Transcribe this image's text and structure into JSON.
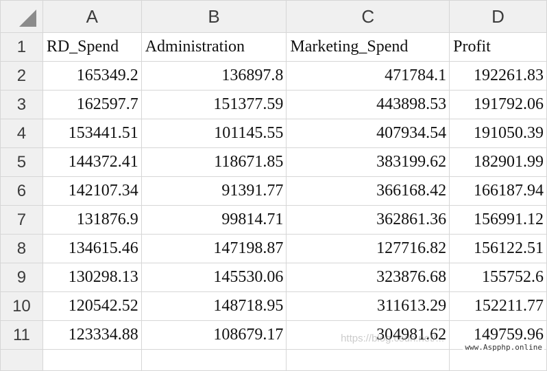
{
  "sheet": {
    "column_headers": [
      "A",
      "B",
      "C",
      "D"
    ],
    "row_numbers": [
      "1",
      "2",
      "3",
      "4",
      "5",
      "6",
      "7",
      "8",
      "9",
      "10",
      "11"
    ],
    "header_row": [
      "RD_Spend",
      "Administration",
      "Marketing_Spend",
      "Profit"
    ],
    "rows": [
      [
        "165349.2",
        "136897.8",
        "471784.1",
        "192261.83"
      ],
      [
        "162597.7",
        "151377.59",
        "443898.53",
        "191792.06"
      ],
      [
        "153441.51",
        "101145.55",
        "407934.54",
        "191050.39"
      ],
      [
        "144372.41",
        "118671.85",
        "383199.62",
        "182901.99"
      ],
      [
        "142107.34",
        "91391.77",
        "366168.42",
        "166187.94"
      ],
      [
        "131876.9",
        "99814.71",
        "362861.36",
        "156991.12"
      ],
      [
        "134615.46",
        "147198.87",
        "127716.82",
        "156122.51"
      ],
      [
        "130298.13",
        "145530.06",
        "323876.68",
        "155752.6"
      ],
      [
        "120542.52",
        "148718.95",
        "311613.29",
        "152211.77"
      ],
      [
        "123334.88",
        "108679.17",
        "304981.62",
        "149759.96"
      ]
    ]
  },
  "watermark": {
    "text": "www.Aspphp.online",
    "faint_text": "https://blog.csdn.net/..."
  },
  "colors": {
    "header_bg": "#f0f0f0",
    "grid_line": "#d6d6d6",
    "text": "#111111"
  }
}
